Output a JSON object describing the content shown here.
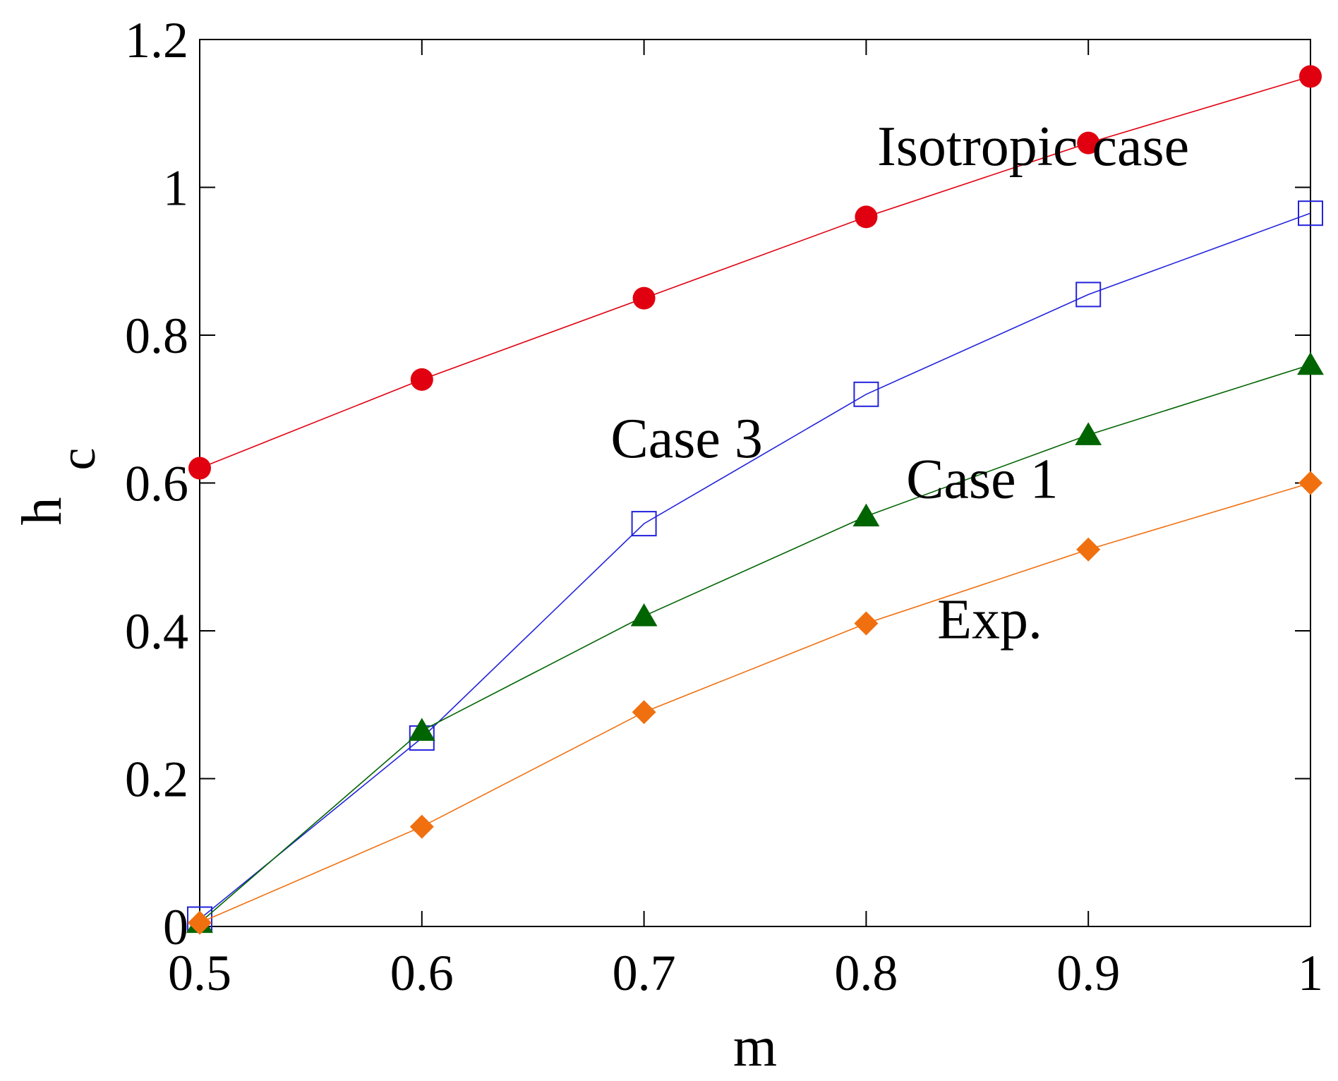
{
  "chart_data": {
    "type": "line",
    "title": "",
    "xlabel": "m",
    "ylabel": "h",
    "ylabel_subscript": "c",
    "xlim": [
      0.5,
      1.0
    ],
    "ylim": [
      0,
      1.2
    ],
    "xticks": [
      "0.5",
      "0.6",
      "0.7",
      "0.8",
      "0.9",
      "1"
    ],
    "yticks": [
      "0",
      "0.2",
      "0.4",
      "0.6",
      "0.8",
      "1",
      "1.2"
    ],
    "x": [
      0.5,
      0.6,
      0.7,
      0.8,
      0.9,
      1.0
    ],
    "grid": false,
    "series": [
      {
        "name": "Isotropic case",
        "color": "#e00010",
        "marker": "filled-circle",
        "values": [
          0.62,
          0.74,
          0.85,
          0.96,
          1.06,
          1.15
        ]
      },
      {
        "name": "Case 3",
        "color": "#2222dd",
        "marker": "open-square",
        "values": [
          0.01,
          0.255,
          0.545,
          0.72,
          0.855,
          0.965
        ]
      },
      {
        "name": "Case 1",
        "color": "#006400",
        "marker": "filled-triangle",
        "values": [
          0.005,
          0.265,
          0.42,
          0.555,
          0.665,
          0.76
        ]
      },
      {
        "name": "Exp.",
        "color": "#f07010",
        "marker": "filled-diamond",
        "values": [
          0.005,
          0.135,
          0.29,
          0.41,
          0.51,
          0.6
        ]
      }
    ],
    "annotations": [
      {
        "text": "Isotropic case",
        "x": 0.805,
        "y": 1.03
      },
      {
        "text": "Case 3",
        "x": 0.685,
        "y": 0.635
      },
      {
        "text": "Case 1",
        "x": 0.818,
        "y": 0.58
      },
      {
        "text": "Exp.",
        "x": 0.832,
        "y": 0.39
      }
    ]
  }
}
